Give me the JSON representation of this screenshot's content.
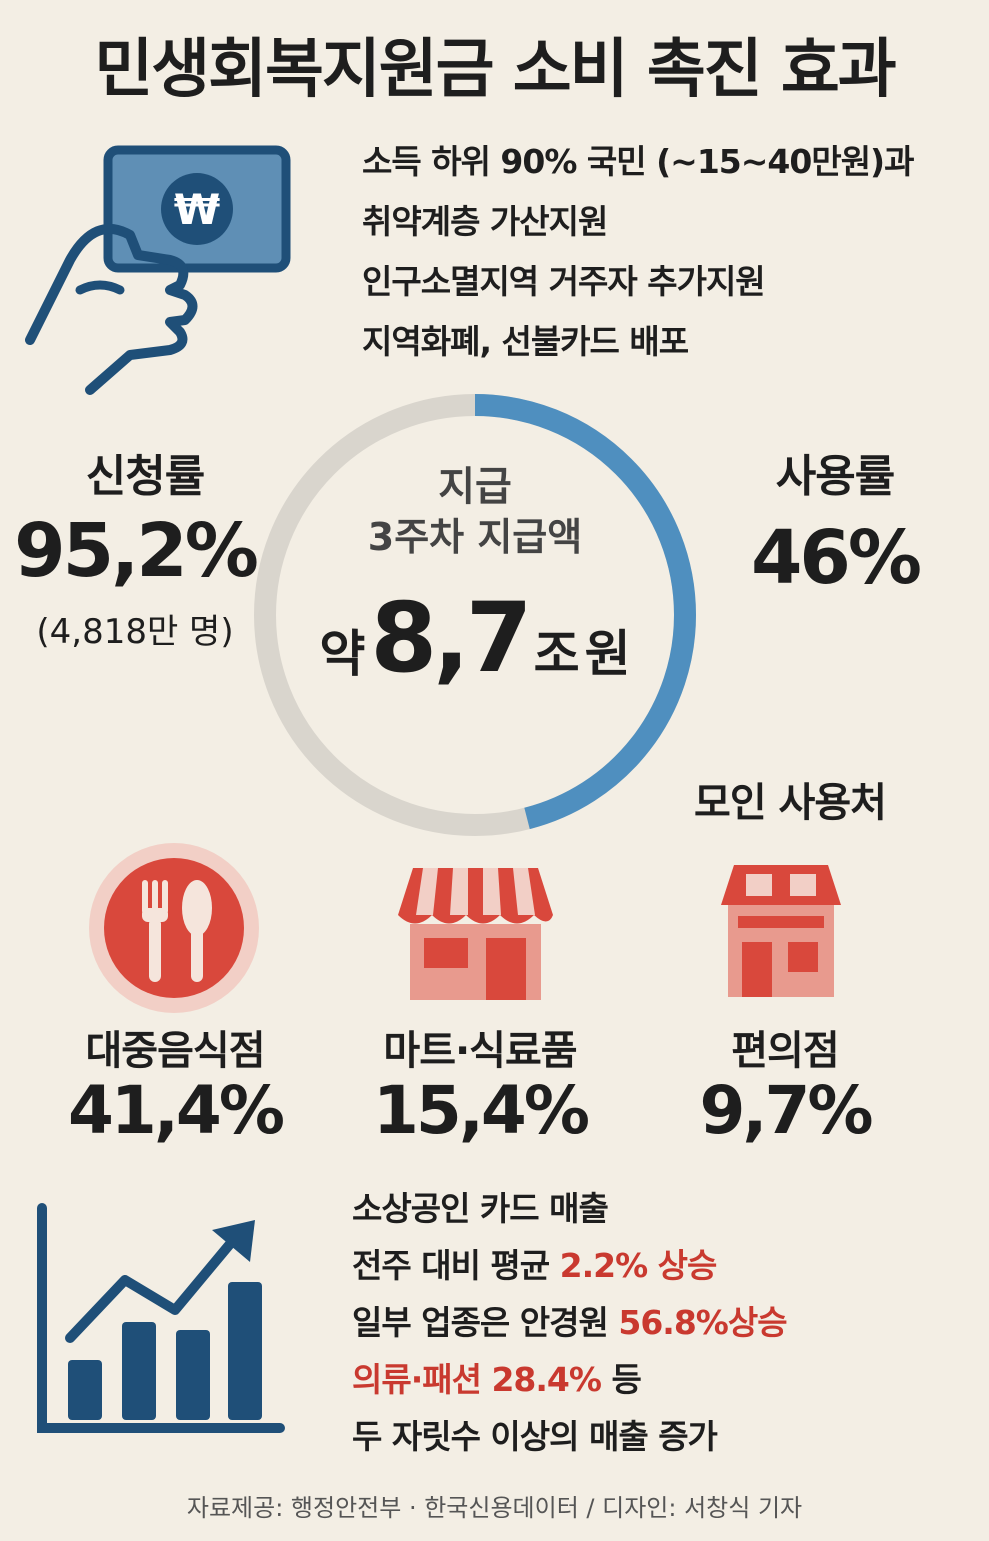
{
  "title": "민생회복지원금 소비 촉진 효과",
  "intro_lines": [
    "소득 하위 90% 국민 (~15~40만원)과",
    "취약계층 가산지원",
    "인구소멸지역 거주자 추가지원",
    "지역화폐, 선불카드 배포"
  ],
  "application": {
    "label": "신청률",
    "value": "95,2%",
    "sub": "(4,818만 명)"
  },
  "usage": {
    "label": "사용률",
    "value": "46%",
    "percent": 46
  },
  "center": {
    "line1": "지급",
    "line2": "3주차 지급액",
    "prefix": "약",
    "amount": "8,7",
    "unit1": "조",
    "unit2": "원"
  },
  "places_heading": "모인 사용처",
  "categories": [
    {
      "label": "대중음식점",
      "value": "41,4%"
    },
    {
      "label": "마트·식료품",
      "value": "15,4%"
    },
    {
      "label": "편의점",
      "value": "9,7%"
    }
  ],
  "sales": {
    "line1": "소상공인 카드 매출",
    "line2_pre": "전주 대비 평균 ",
    "line2_red": "2.2% 상승",
    "line3_pre": "일부 업종은 안경원 ",
    "line3_red": "56.8%상승",
    "line4_red": "의류·패션 28.4%",
    "line4_post": " 등",
    "line5": "두 자릿수 이상의 매출 증가"
  },
  "footer": "자료제공: 행정안전부 · 한국신용데이터 / 디자인: 서창식 기자",
  "colors": {
    "background": "#f3eee4",
    "blue": "#4f8fbf",
    "navy": "#1f4f78",
    "red": "#c9392f",
    "ring_gray": "#d9d5cd"
  },
  "icons": [
    "card-hand-icon",
    "won-icon",
    "restaurant-icon",
    "store-icon",
    "convenience-store-icon",
    "growth-chart-icon"
  ]
}
